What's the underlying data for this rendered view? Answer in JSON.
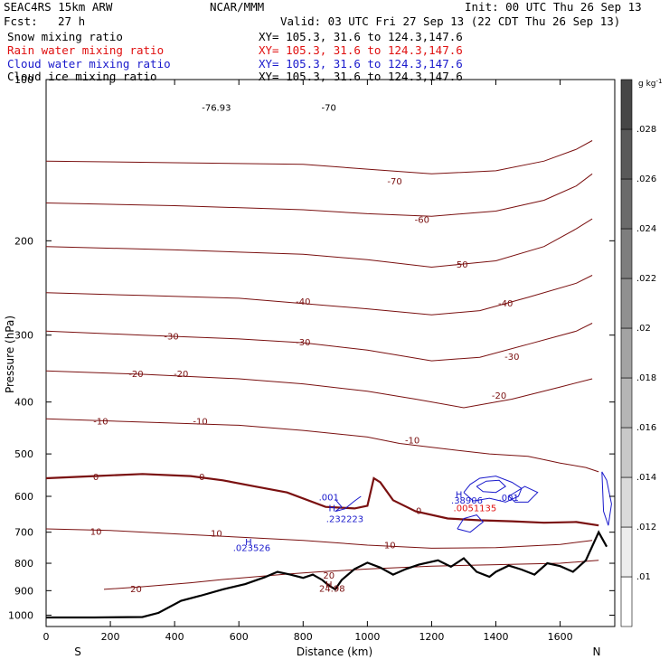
{
  "header": {
    "model": "SEAC4RS 15km ARW",
    "org": "NCAR/MMM",
    "init": "Init: 00 UTC Thu 26 Sep 13",
    "fcst_label": "Fcst:",
    "fcst_value": "27 h",
    "valid": "Valid: 03 UTC Fri 27 Sep 13 (22 CDT Thu 26 Sep 13)",
    "fields": [
      {
        "name": "Snow mixing ratio",
        "xy": "XY= 105.3, 31.6 to 124.3,147.6",
        "color": "#000000"
      },
      {
        "name": "Rain water mixing ratio",
        "xy": "XY= 105.3, 31.6 to 124.3,147.6",
        "color": "#e01010"
      },
      {
        "name": "Cloud water mixing ratio",
        "xy": "XY= 105.3, 31.6 to 124.3,147.6",
        "color": "#1a1acc"
      },
      {
        "name": "Cloud ice mixing ratio",
        "xy": "XY= 105.3, 31.6 to 124.3,147.6",
        "color": "#000000"
      }
    ]
  },
  "chart_data": {
    "type": "line",
    "xlabel": "Distance (km)",
    "ylabel": "Pressure (hPa)",
    "xlim": [
      0,
      1770
    ],
    "ylim": [
      100,
      1050
    ],
    "y_scale": "log (pressure)",
    "x_ticks": [
      0,
      200,
      400,
      600,
      800,
      1000,
      1200,
      1400,
      1600
    ],
    "y_ticks": [
      100,
      200,
      300,
      400,
      500,
      600,
      700,
      800,
      900,
      1000
    ],
    "y_tick_labels": [
      "100",
      "200",
      "300",
      "400",
      "500",
      "600",
      "700",
      "800",
      "900",
      "1000"
    ],
    "end_labels": {
      "left": "S",
      "right": "N"
    },
    "colorbar": {
      "unit": "g kg",
      "unit_exp": "-1",
      "ticks": [
        ".01",
        ".012",
        ".014",
        ".016",
        ".018",
        ".02",
        ".022",
        ".024",
        ".026",
        ".028"
      ]
    },
    "temperature_contours": [
      {
        "t": -70,
        "labels": [
          {
            "text": "-70",
            "x": 1085,
            "p": 155
          }
        ],
        "points": [
          [
            0,
            142
          ],
          [
            400,
            143
          ],
          [
            800,
            144
          ],
          [
            1000,
            147
          ],
          [
            1200,
            150
          ],
          [
            1400,
            148
          ],
          [
            1550,
            142
          ],
          [
            1650,
            135
          ],
          [
            1700,
            130
          ]
        ]
      },
      {
        "t": -60,
        "labels": [
          {
            "text": "-60",
            "x": 1170,
            "p": 183
          }
        ],
        "points": [
          [
            0,
            170
          ],
          [
            400,
            172
          ],
          [
            800,
            175
          ],
          [
            1000,
            178
          ],
          [
            1200,
            180
          ],
          [
            1400,
            176
          ],
          [
            1550,
            168
          ],
          [
            1650,
            158
          ],
          [
            1700,
            150
          ]
        ]
      },
      {
        "t": -50,
        "labels": [
          {
            "text": "-50",
            "x": 1290,
            "p": 222
          }
        ],
        "points": [
          [
            0,
            205
          ],
          [
            400,
            208
          ],
          [
            800,
            212
          ],
          [
            1000,
            217
          ],
          [
            1200,
            224
          ],
          [
            1400,
            218
          ],
          [
            1550,
            205
          ],
          [
            1650,
            190
          ],
          [
            1700,
            182
          ]
        ]
      },
      {
        "t": -40,
        "labels": [
          {
            "text": "-40",
            "x": 800,
            "p": 260
          },
          {
            "text": "-40",
            "x": 1430,
            "p": 262
          }
        ],
        "points": [
          [
            0,
            250
          ],
          [
            300,
            253
          ],
          [
            600,
            256
          ],
          [
            800,
            262
          ],
          [
            1000,
            268
          ],
          [
            1200,
            275
          ],
          [
            1350,
            270
          ],
          [
            1500,
            255
          ],
          [
            1650,
            240
          ],
          [
            1700,
            232
          ]
        ]
      },
      {
        "t": -30,
        "labels": [
          {
            "text": "-30",
            "x": 390,
            "p": 302
          },
          {
            "text": "-30",
            "x": 800,
            "p": 310
          },
          {
            "text": "-30",
            "x": 1450,
            "p": 330
          }
        ],
        "points": [
          [
            0,
            295
          ],
          [
            300,
            300
          ],
          [
            600,
            305
          ],
          [
            800,
            310
          ],
          [
            1000,
            320
          ],
          [
            1200,
            335
          ],
          [
            1350,
            330
          ],
          [
            1500,
            312
          ],
          [
            1650,
            295
          ],
          [
            1700,
            285
          ]
        ]
      },
      {
        "t": -20,
        "labels": [
          {
            "text": "-20",
            "x": 280,
            "p": 355
          },
          {
            "text": "-20",
            "x": 420,
            "p": 355
          },
          {
            "text": "-20",
            "x": 1410,
            "p": 390
          }
        ],
        "points": [
          [
            0,
            350
          ],
          [
            300,
            355
          ],
          [
            600,
            362
          ],
          [
            800,
            370
          ],
          [
            1000,
            382
          ],
          [
            1150,
            395
          ],
          [
            1300,
            410
          ],
          [
            1450,
            395
          ],
          [
            1600,
            375
          ],
          [
            1700,
            362
          ]
        ]
      },
      {
        "t": -10,
        "labels": [
          {
            "text": "-10",
            "x": 170,
            "p": 435
          },
          {
            "text": "-10",
            "x": 480,
            "p": 435
          },
          {
            "text": "-10",
            "x": 1140,
            "p": 472
          }
        ],
        "points": [
          [
            0,
            430
          ],
          [
            300,
            436
          ],
          [
            600,
            442
          ],
          [
            800,
            452
          ],
          [
            1000,
            465
          ],
          [
            1100,
            478
          ],
          [
            1250,
            490
          ],
          [
            1380,
            500
          ],
          [
            1500,
            505
          ],
          [
            1600,
            520
          ],
          [
            1680,
            530
          ],
          [
            1720,
            540
          ]
        ]
      },
      {
        "t": 0,
        "bold": true,
        "labels": [
          {
            "text": "0",
            "x": 155,
            "p": 553
          },
          {
            "text": "0",
            "x": 485,
            "p": 553
          },
          {
            "text": "0",
            "x": 1160,
            "p": 640
          }
        ],
        "points": [
          [
            0,
            555
          ],
          [
            150,
            550
          ],
          [
            300,
            545
          ],
          [
            450,
            550
          ],
          [
            550,
            560
          ],
          [
            650,
            575
          ],
          [
            750,
            590
          ],
          [
            870,
            628
          ],
          [
            920,
            630
          ],
          [
            960,
            632
          ],
          [
            1000,
            625
          ],
          [
            1020,
            555
          ],
          [
            1040,
            565
          ],
          [
            1080,
            610
          ],
          [
            1150,
            640
          ],
          [
            1250,
            660
          ],
          [
            1350,
            665
          ],
          [
            1450,
            668
          ],
          [
            1550,
            672
          ],
          [
            1650,
            670
          ],
          [
            1720,
            680
          ]
        ]
      },
      {
        "t": 10,
        "labels": [
          {
            "text": "10",
            "x": 155,
            "p": 700
          },
          {
            "text": "10",
            "x": 530,
            "p": 705
          },
          {
            "text": "10",
            "x": 1070,
            "p": 742
          }
        ],
        "points": [
          [
            0,
            690
          ],
          [
            200,
            695
          ],
          [
            400,
            705
          ],
          [
            600,
            715
          ],
          [
            800,
            725
          ],
          [
            1000,
            740
          ],
          [
            1200,
            750
          ],
          [
            1400,
            748
          ],
          [
            1600,
            738
          ],
          [
            1700,
            725
          ]
        ]
      },
      {
        "t": 20,
        "labels": [
          {
            "text": "20",
            "x": 880,
            "p": 845
          },
          {
            "text": "20",
            "x": 280,
            "p": 895
          }
        ],
        "points": [
          [
            180,
            895
          ],
          [
            300,
            885
          ],
          [
            450,
            870
          ],
          [
            550,
            858
          ],
          [
            650,
            848
          ],
          [
            750,
            838
          ],
          [
            850,
            830
          ],
          [
            1000,
            820
          ],
          [
            1200,
            810
          ],
          [
            1400,
            805
          ],
          [
            1600,
            800
          ],
          [
            1720,
            790
          ]
        ]
      }
    ],
    "terrain": {
      "points": [
        [
          0,
          1010
        ],
        [
          150,
          1010
        ],
        [
          300,
          1008
        ],
        [
          350,
          990
        ],
        [
          420,
          940
        ],
        [
          480,
          920
        ],
        [
          550,
          895
        ],
        [
          620,
          875
        ],
        [
          680,
          850
        ],
        [
          720,
          830
        ],
        [
          760,
          840
        ],
        [
          800,
          852
        ],
        [
          830,
          840
        ],
        [
          860,
          860
        ],
        [
          880,
          880
        ],
        [
          900,
          895
        ],
        [
          920,
          860
        ],
        [
          960,
          820
        ],
        [
          1000,
          798
        ],
        [
          1040,
          815
        ],
        [
          1080,
          840
        ],
        [
          1120,
          820
        ],
        [
          1160,
          805
        ],
        [
          1220,
          790
        ],
        [
          1260,
          812
        ],
        [
          1300,
          783
        ],
        [
          1340,
          830
        ],
        [
          1380,
          848
        ],
        [
          1400,
          830
        ],
        [
          1440,
          808
        ],
        [
          1480,
          822
        ],
        [
          1520,
          840
        ],
        [
          1560,
          800
        ],
        [
          1600,
          810
        ],
        [
          1640,
          830
        ],
        [
          1680,
          790
        ],
        [
          1720,
          700
        ],
        [
          1745,
          745
        ]
      ]
    },
    "cloud_water_contours": [
      {
        "points": [
          [
            900,
            608
          ],
          [
            920,
            628
          ],
          [
            900,
            640
          ],
          [
            930,
            633
          ],
          [
            960,
            612
          ],
          [
            980,
            600
          ]
        ]
      },
      {
        "points": [
          [
            1300,
            590
          ],
          [
            1320,
            570
          ],
          [
            1350,
            555
          ],
          [
            1400,
            550
          ],
          [
            1450,
            565
          ],
          [
            1480,
            580
          ],
          [
            1470,
            600
          ],
          [
            1430,
            615
          ],
          [
            1380,
            605
          ],
          [
            1330,
            612
          ],
          [
            1300,
            590
          ]
        ]
      },
      {
        "points": [
          [
            1340,
            575
          ],
          [
            1370,
            562
          ],
          [
            1410,
            560
          ],
          [
            1430,
            575
          ],
          [
            1400,
            590
          ],
          [
            1360,
            588
          ],
          [
            1340,
            575
          ]
        ]
      },
      {
        "points": [
          [
            1440,
            600
          ],
          [
            1490,
            575
          ],
          [
            1530,
            590
          ],
          [
            1500,
            615
          ],
          [
            1460,
            615
          ],
          [
            1440,
            600
          ]
        ]
      },
      {
        "points": [
          [
            1280,
            690
          ],
          [
            1300,
            660
          ],
          [
            1340,
            650
          ],
          [
            1360,
            670
          ],
          [
            1320,
            700
          ],
          [
            1280,
            690
          ]
        ]
      },
      {
        "points": [
          [
            1730,
            540
          ],
          [
            1745,
            560
          ],
          [
            1760,
            620
          ],
          [
            1750,
            680
          ],
          [
            1735,
            640
          ],
          [
            1730,
            540
          ]
        ]
      }
    ],
    "annotations": [
      {
        "text": "H",
        "x": 890,
        "p": 632,
        "color": "#1a1acc"
      },
      {
        "text": ".232223",
        "x": 930,
        "p": 663,
        "color": "#1a1acc"
      },
      {
        "text": "H",
        "x": 630,
        "p": 732,
        "color": "#1a1acc"
      },
      {
        "text": ".023526",
        "x": 640,
        "p": 750,
        "color": "#1a1acc"
      },
      {
        "text": ".001",
        "x": 880,
        "p": 603,
        "color": "#1a1acc"
      },
      {
        "text": "H",
        "x": 1285,
        "p": 597,
        "color": "#1a1acc"
      },
      {
        "text": ".38906",
        "x": 1310,
        "p": 612,
        "color": "#1a1acc"
      },
      {
        "text": ".001",
        "x": 1440,
        "p": 605,
        "color": "#1a1acc"
      },
      {
        "text": ".0051135",
        "x": 1335,
        "p": 632,
        "color": "#e01010"
      },
      {
        "text": "H",
        "x": 880,
        "p": 878,
        "color": "#7a1010"
      },
      {
        "text": "24.98",
        "x": 890,
        "p": 893,
        "color": "#7a1010"
      },
      {
        "text": "-76.93",
        "x": 530,
        "p": 113,
        "color": "#000000"
      },
      {
        "text": "-70",
        "x": 880,
        "p": 113,
        "color": "#000000"
      }
    ]
  }
}
